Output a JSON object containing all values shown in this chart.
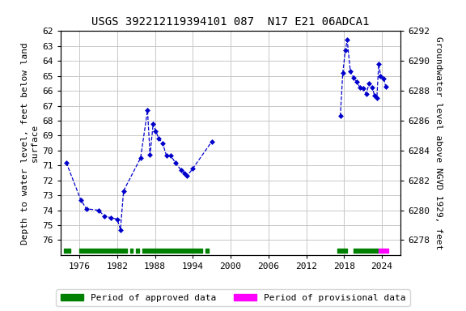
{
  "title": "USGS 392212119394101 087  N17 E21 06ADCA1",
  "ylabel_left": "Depth to water level, feet below land\nsurface",
  "ylabel_right": "Groundwater level above NGVD 1929, feet",
  "xlim": [
    1973,
    2027
  ],
  "ylim_left_top": 62,
  "ylim_left_bottom": 77,
  "xticks": [
    1976,
    1982,
    1988,
    1994,
    2000,
    2006,
    2012,
    2018,
    2024
  ],
  "yticks_left": [
    62,
    63,
    64,
    65,
    66,
    67,
    68,
    69,
    70,
    71,
    72,
    73,
    74,
    75,
    76
  ],
  "yticks_right_labels": [
    6292,
    6290,
    6288,
    6286,
    6284,
    6282,
    6280,
    6278
  ],
  "yticks_right_positions": [
    62,
    64,
    66,
    68,
    70,
    72,
    74,
    76
  ],
  "segments": [
    [
      [
        1973.9,
        70.8
      ],
      [
        1976.2,
        73.3
      ],
      [
        1977.1,
        73.9
      ],
      [
        1979.0,
        74.0
      ],
      [
        1980.0,
        74.4
      ],
      [
        1981.0,
        74.5
      ],
      [
        1982.0,
        74.6
      ],
      [
        1982.5,
        75.3
      ],
      [
        1983.0,
        72.7
      ],
      [
        1985.7,
        70.5
      ],
      [
        1986.8,
        67.3
      ],
      [
        1987.2,
        70.3
      ],
      [
        1987.7,
        68.2
      ],
      [
        1988.1,
        68.7
      ],
      [
        1988.6,
        69.2
      ],
      [
        1989.2,
        69.5
      ],
      [
        1989.8,
        70.35
      ],
      [
        1990.5,
        70.35
      ],
      [
        1991.2,
        70.8
      ],
      [
        1992.1,
        71.3
      ],
      [
        1992.7,
        71.5
      ],
      [
        1993.1,
        71.7
      ],
      [
        1994.0,
        71.2
      ],
      [
        1997.0,
        69.4
      ]
    ],
    [
      [
        2017.4,
        67.7
      ],
      [
        2017.8,
        64.8
      ],
      [
        2018.2,
        63.3
      ],
      [
        2018.5,
        62.6
      ],
      [
        2019.0,
        64.7
      ],
      [
        2019.5,
        65.1
      ],
      [
        2020.0,
        65.4
      ],
      [
        2020.5,
        65.75
      ],
      [
        2021.0,
        65.85
      ],
      [
        2021.5,
        66.2
      ],
      [
        2022.0,
        65.5
      ],
      [
        2022.5,
        65.75
      ],
      [
        2022.8,
        66.3
      ],
      [
        2023.2,
        66.5
      ],
      [
        2023.5,
        64.2
      ],
      [
        2023.8,
        65.0
      ],
      [
        2024.3,
        65.2
      ],
      [
        2024.6,
        65.7
      ]
    ]
  ],
  "approved_periods": [
    [
      1973.5,
      1974.5
    ],
    [
      1976.0,
      1983.5
    ],
    [
      1984.0,
      1984.5
    ],
    [
      1985.0,
      1985.5
    ],
    [
      1986.0,
      1995.5
    ],
    [
      1996.0,
      1996.5
    ],
    [
      2017.0,
      2018.5
    ],
    [
      2019.5,
      2023.5
    ]
  ],
  "provisional_periods": [
    [
      2023.5,
      2025.0
    ]
  ],
  "background_color": "#ffffff",
  "grid_color": "#c8c8c8",
  "data_color": "#0000cc",
  "approved_color": "#008000",
  "provisional_color": "#ff00ff",
  "title_fontsize": 10,
  "axis_label_fontsize": 8,
  "tick_fontsize": 8,
  "legend_fontsize": 8
}
